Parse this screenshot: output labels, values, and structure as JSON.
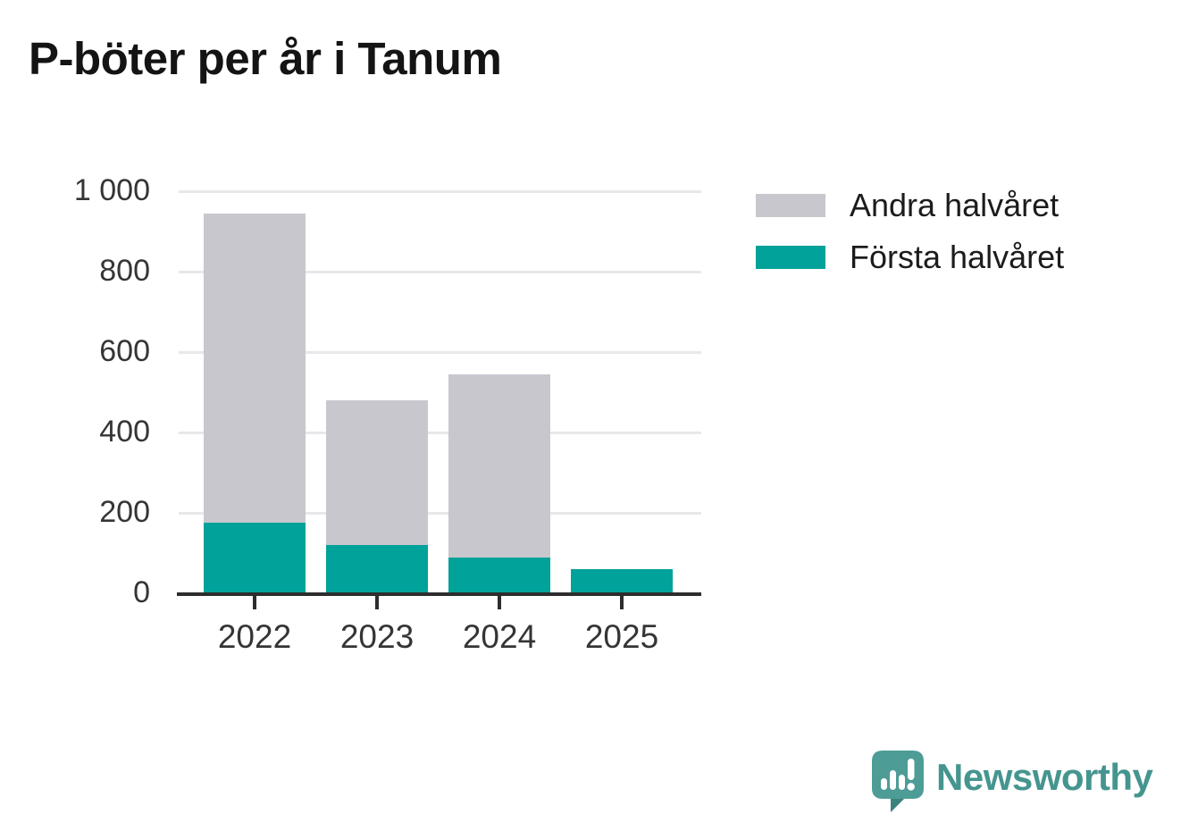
{
  "title": "P-böter per år i Tanum",
  "legend": {
    "items": [
      {
        "label": "Andra halvåret",
        "color": "#c9c7ce"
      },
      {
        "label": "Första halvåret",
        "color": "#00a29a"
      }
    ]
  },
  "footer": {
    "brand": "Newsworthy",
    "logo_icon": "speech-bubble-bar-chart-icon"
  },
  "colors": {
    "first_half": "#00a29a",
    "second_half": "#c9c7ce",
    "axis": "#2d2d2d",
    "grid": "#e8e7ea",
    "brand": "#45958f",
    "title_text": "#141414",
    "tick_text": "#353535"
  },
  "chart_data": {
    "type": "bar",
    "stacked": true,
    "title": "P-böter per år i Tanum",
    "categories": [
      "2022",
      "2023",
      "2024",
      "2025"
    ],
    "series": [
      {
        "name": "Första halvåret",
        "color": "#00a29a",
        "values": [
          175,
          120,
          90,
          60
        ]
      },
      {
        "name": "Andra halvåret",
        "color": "#c9c7ce",
        "values": [
          770,
          360,
          455,
          0
        ]
      }
    ],
    "xlabel": "",
    "ylabel": "",
    "ylim": [
      0,
      1000
    ],
    "yticks": [
      0,
      200,
      400,
      600,
      800,
      1000
    ],
    "ytick_labels": [
      "0",
      "200",
      "400",
      "600",
      "800",
      "1 000"
    ],
    "grid": "horizontal-gridlines",
    "legend_position": "top-right"
  }
}
